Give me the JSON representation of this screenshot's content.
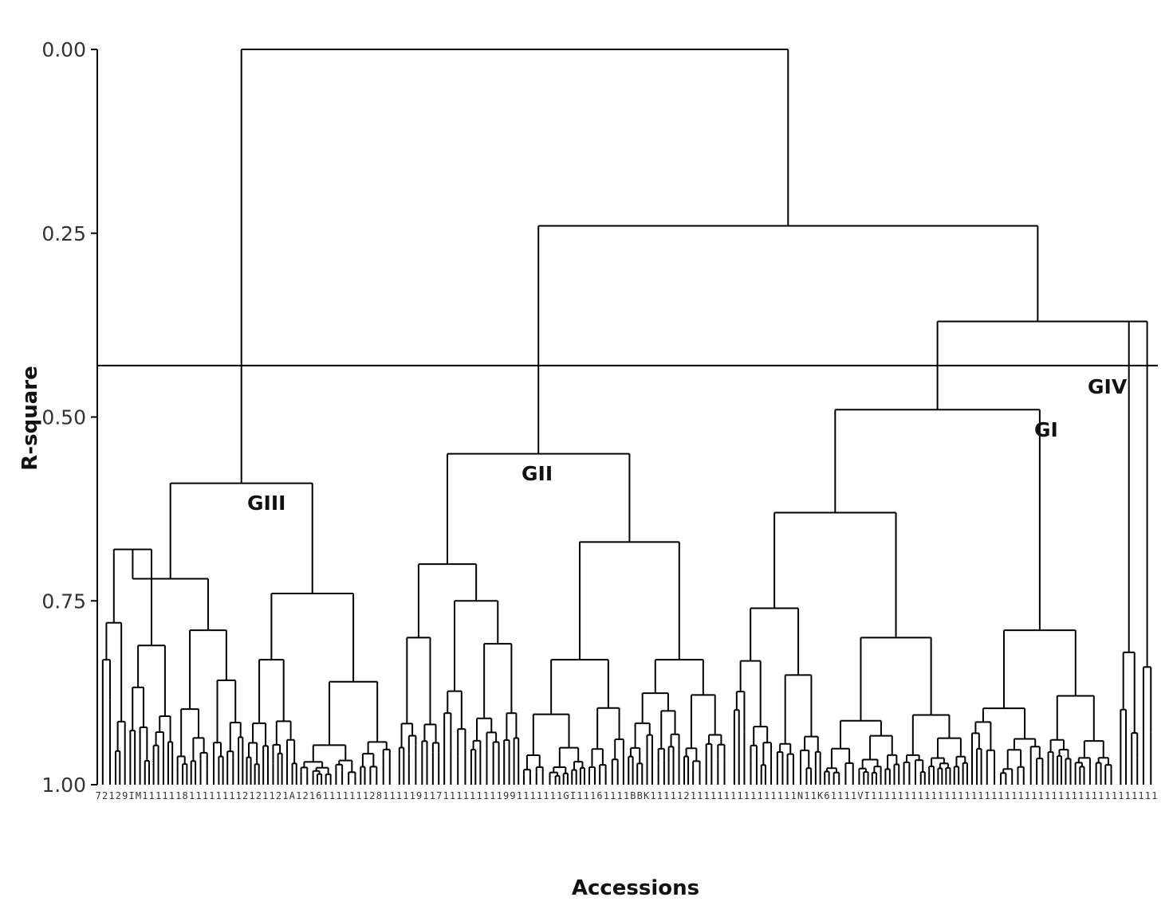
{
  "chart_data": {
    "type": "dendrogram",
    "ylabel": "R-square",
    "xlabel": "Accessions",
    "ylim": [
      0,
      1
    ],
    "y_inverted": true,
    "y_ticks": [
      {
        "value": 0.0,
        "label": "0.00"
      },
      {
        "value": 0.25,
        "label": "0.25"
      },
      {
        "value": 0.5,
        "label": "0.50"
      },
      {
        "value": 0.75,
        "label": "0.75"
      },
      {
        "value": 1.0,
        "label": "1.00"
      }
    ],
    "cutoff": 0.43,
    "root_height": 0.0,
    "top_level": {
      "split_heights": [
        0.0,
        0.24,
        0.37
      ],
      "description": "Root splits GIII from the rest; the rest splits GII from (GI + GIV); GI and GIV join at 0.37"
    },
    "groups": [
      {
        "name": "GIII",
        "label": "GIII",
        "node_height": 0.59,
        "sub_heights": [
          0.72,
          0.74,
          0.68,
          0.79,
          0.83,
          0.86
        ],
        "leaf_count": 36
      },
      {
        "name": "GII",
        "label": "GII",
        "node_height": 0.55,
        "sub_heights": [
          0.7,
          0.67,
          0.8,
          0.75,
          0.83,
          0.83
        ],
        "leaf_count": 42
      },
      {
        "name": "GI",
        "label": "GI",
        "node_height": 0.49,
        "sub_heights": [
          0.63,
          0.79,
          0.76,
          0.8,
          0.81
        ],
        "leaf_count": 49
      },
      {
        "name": "GIV",
        "label": "GIV",
        "node_height": 0.37,
        "sub_heights": [
          0.82,
          0.84
        ],
        "leaf_count": 9
      }
    ],
    "leaf_labels_text": "72129IM1111118111111112121121A1216111111128111119117111111111991111111GI11161111BBK1111121111111111111111N11K61111VI1111111111111111111111111111111111111111111"
  }
}
